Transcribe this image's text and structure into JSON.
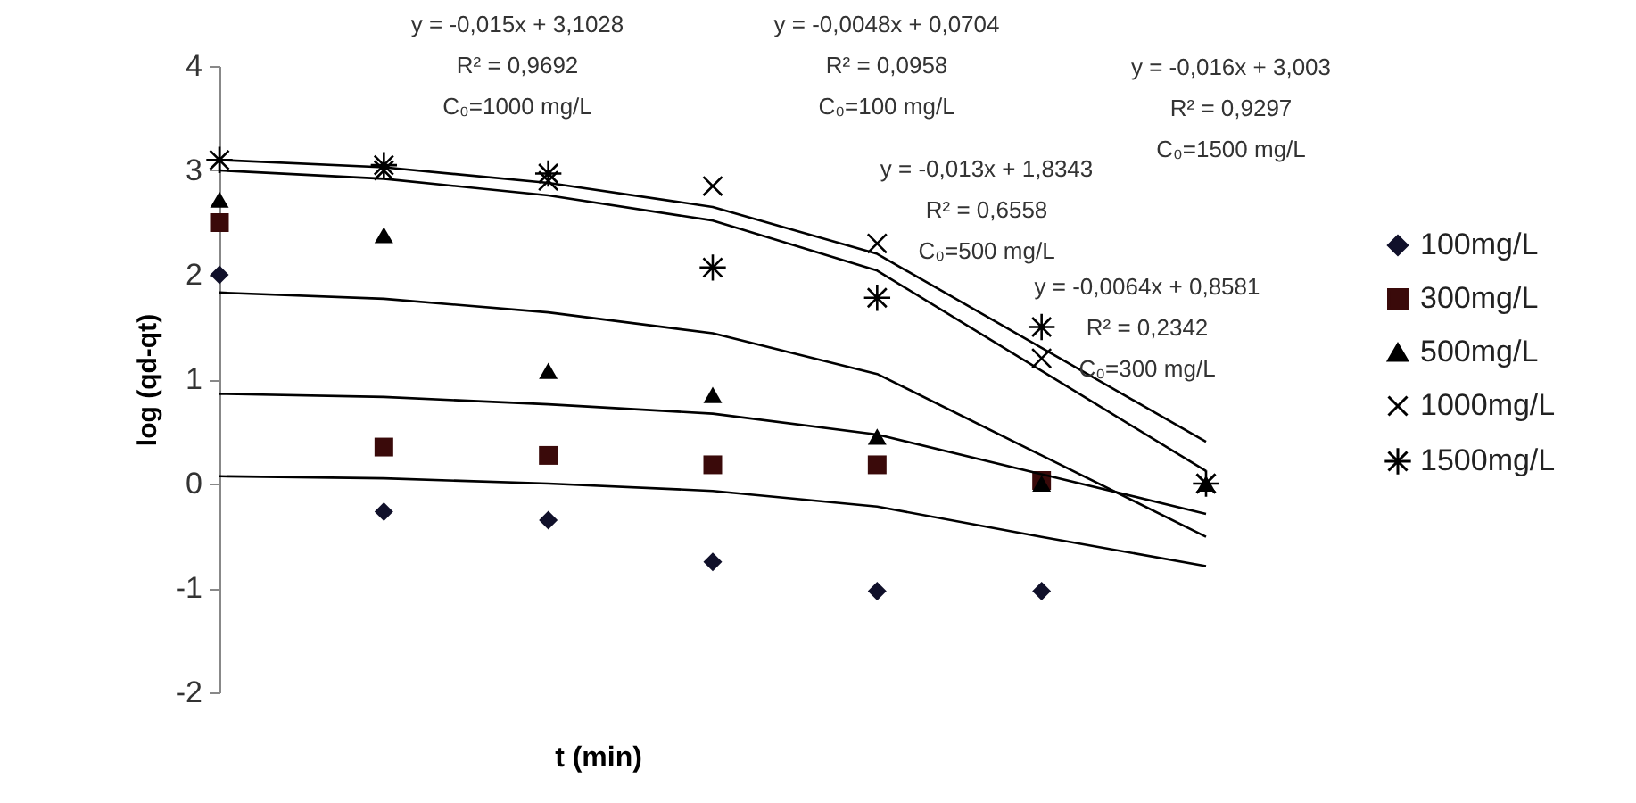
{
  "chart_data": {
    "type": "scatter",
    "xlabel": "t (min)",
    "ylabel": "log (qd-qt)",
    "ylim": [
      -2,
      4
    ],
    "yticks": [
      -2,
      -1,
      0,
      1,
      2,
      3,
      4
    ],
    "tick_labels": "y",
    "grid": false,
    "legend": "right",
    "categories": [
      null,
      null,
      null,
      null,
      null,
      null,
      null
    ],
    "series": [
      {
        "name": "100mg/L",
        "color": "#10102a",
        "marker": "diamond",
        "values": [
          2.0,
          -0.27,
          -0.35,
          -0.75,
          -1.03,
          -1.03,
          null
        ]
      },
      {
        "name": "300mg/L",
        "color": "#3a0a0a",
        "marker": "square",
        "values": [
          2.5,
          0.35,
          0.27,
          0.18,
          0.18,
          0.03,
          null
        ]
      },
      {
        "name": "500mg/L",
        "color": "#000000",
        "marker": "triangle",
        "values": [
          2.72,
          2.38,
          1.08,
          0.85,
          0.45,
          0.0,
          0.0
        ]
      },
      {
        "name": "1000mg/L",
        "color": "#000000",
        "marker": "cross",
        "values": [
          null,
          3.0,
          2.9,
          2.85,
          2.3,
          1.2,
          0.0
        ]
      },
      {
        "name": "1500mg/L",
        "color": "#000000",
        "marker": "cross",
        "values": [
          3.1,
          3.05,
          2.97,
          2.07,
          1.78,
          1.5,
          0.0
        ]
      },
      {
        "type": "line",
        "color": "#000000",
        "values": [
          0.07,
          0.05,
          0.0,
          -0.07,
          -0.22,
          -0.51,
          -0.79
        ]
      },
      {
        "type": "line",
        "color": "#000000",
        "values": [
          0.86,
          0.83,
          0.76,
          0.67,
          0.47,
          0.09,
          -0.29
        ]
      },
      {
        "type": "line",
        "color": "#000000",
        "values": [
          1.83,
          1.77,
          1.64,
          1.44,
          1.05,
          0.27,
          -0.51
        ]
      },
      {
        "type": "line",
        "color": "#000000",
        "values": [
          3.1,
          3.03,
          2.88,
          2.65,
          2.2,
          1.3,
          0.4
        ]
      },
      {
        "type": "line",
        "color": "#000000",
        "values": [
          3.0,
          2.92,
          2.76,
          2.52,
          2.04,
          1.08,
          0.12
        ]
      }
    ],
    "annotations": [
      "y = -0,015x + 3,1028\nR² = 0,9692\nC₀=1000 mg/L",
      "y = -0,0048x + 0,0704\nR² = 0,0958\nC₀=100 mg/L",
      "y = -0,016x + 3,003\nR² = 0,9297\nC₀=1500 mg/L",
      "y = -0,013x + 1,8343\nR² = 0,6558\nC₀=500 mg/L",
      "y = -0,0064x + 0,8581\nR² = 0,2342\nC₀=300 mg/L"
    ]
  }
}
